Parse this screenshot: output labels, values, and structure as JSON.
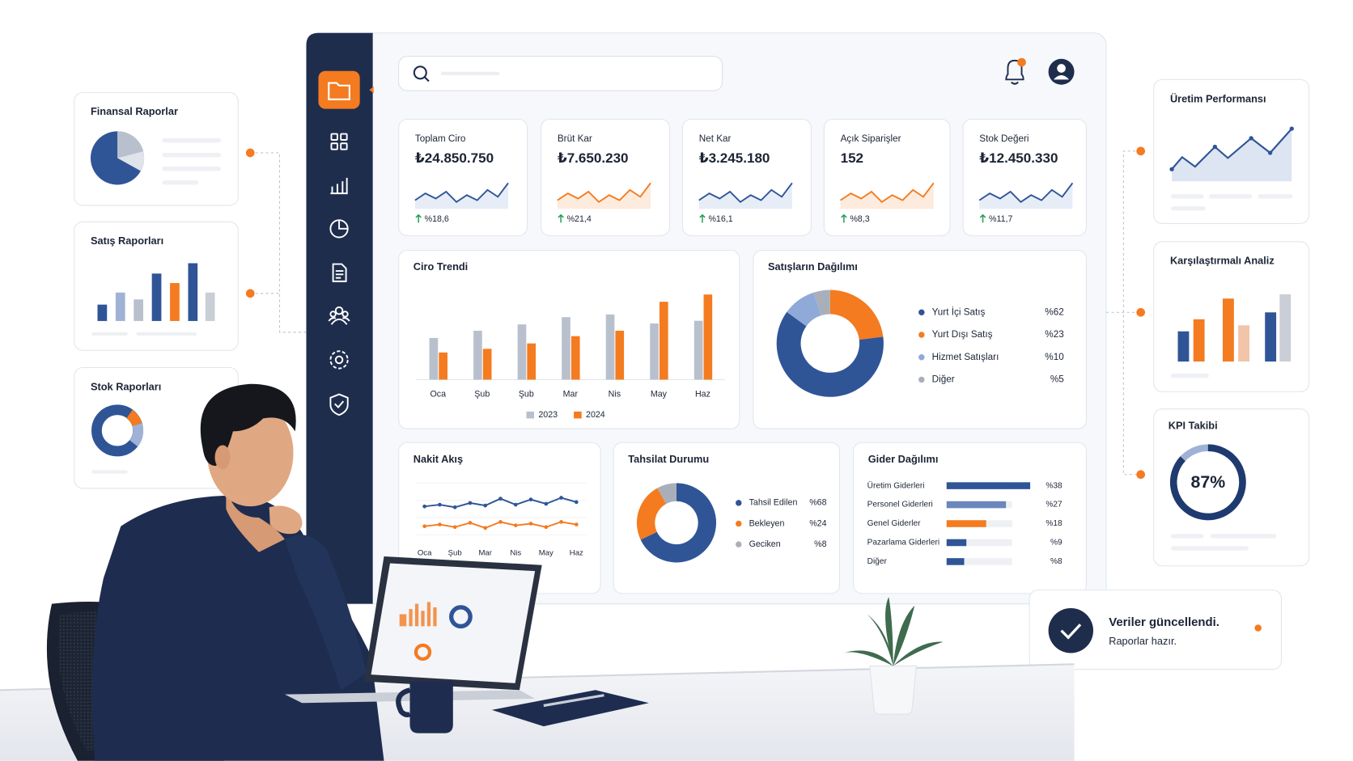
{
  "left_panels": [
    "Finansal Raporlar",
    "Satış Raporları",
    "Stok Raporları"
  ],
  "right_panels": [
    "Üretim Performansı",
    "Karşılaştırmalı Analiz"
  ],
  "kpis": [
    {
      "label": "Toplam Ciro",
      "value": "₺24.850.750",
      "change": "%18,6"
    },
    {
      "label": "Brüt Kar",
      "value": "₺7.650.230",
      "change": "%21,4"
    },
    {
      "label": "Net Kar",
      "value": "₺3.245.180",
      "change": "%16,1"
    },
    {
      "label": "Açık Siparişler",
      "value": "152",
      "change": "%8,3"
    },
    {
      "label": "Stok Değeri",
      "value": "₺12.450.330",
      "change": "%11,7"
    }
  ],
  "notification": {
    "title": "Veriler güncellendi.",
    "message": "Raporlar hazır."
  },
  "chart_data": [
    {
      "type": "bar",
      "title": "Ciro Trendi",
      "categories": [
        "Oca",
        "Şub",
        "Şub",
        "Mar",
        "Nis",
        "May",
        "Haz"
      ],
      "series": [
        {
          "name": "2023",
          "color": "#b9c0cd",
          "values": [
            46,
            54,
            61,
            69,
            72,
            62,
            65
          ]
        },
        {
          "name": "2024",
          "color": "#f47b20",
          "values": [
            30,
            34,
            40,
            48,
            54,
            86,
            94
          ]
        }
      ],
      "ylim": [
        0,
        100
      ]
    },
    {
      "type": "donut",
      "title": "Satışların Dağılımı",
      "categories": [
        "Yurt İçi Satış",
        "Yurt Dışı Satış",
        "Hizmet Satışları",
        "Diğer"
      ],
      "values": [
        62,
        23,
        10,
        5
      ],
      "value_labels": [
        "%62",
        "%23",
        "%10",
        "%5"
      ],
      "colors": [
        "#2f5597",
        "#f47b20",
        "#8fa9d9",
        "#a9afba"
      ]
    },
    {
      "type": "line",
      "title": "Nakit Akış",
      "categories": [
        "Oca",
        null,
        "Şub",
        null,
        "Mar",
        null,
        "Nis",
        null,
        "May",
        null,
        "Haz"
      ],
      "series": [
        {
          "color": "#2f5597",
          "values": [
            63,
            65,
            62,
            67,
            64,
            72,
            65,
            71,
            66,
            73,
            68
          ]
        },
        {
          "color": "#f47b20",
          "values": [
            40,
            42,
            39,
            44,
            38,
            45,
            41,
            43,
            39,
            45,
            42
          ]
        }
      ],
      "ylim": [
        0,
        100
      ]
    },
    {
      "type": "donut",
      "title": "Tahsilat Durumu",
      "categories": [
        "Tahsil Edilen",
        "Bekleyen",
        "Geciken"
      ],
      "values": [
        68,
        24,
        8
      ],
      "value_labels": [
        "%68",
        "%24",
        "%8"
      ],
      "colors": [
        "#2f5597",
        "#f47b20",
        "#a9afba"
      ]
    },
    {
      "type": "hbar",
      "title": "Gider Dağılımı",
      "categories": [
        "Üretim Giderleri",
        "Personel Giderleri",
        "Genel Giderler",
        "Pazarlama Giderleri",
        "Diğer"
      ],
      "values": [
        38,
        27,
        18,
        9,
        8
      ],
      "value_labels": [
        "%38",
        "%27",
        "%18",
        "%9",
        "%8"
      ],
      "colors": [
        "#2f5597",
        "#6b86bd",
        "#f47b20",
        "#2f5597",
        "#2f5597"
      ]
    },
    {
      "type": "gauge",
      "title": "KPI Takibi",
      "values": [
        87
      ],
      "value_labels": [
        "87%"
      ],
      "ylim": [
        0,
        100
      ],
      "color": "#1f3a6e"
    }
  ]
}
